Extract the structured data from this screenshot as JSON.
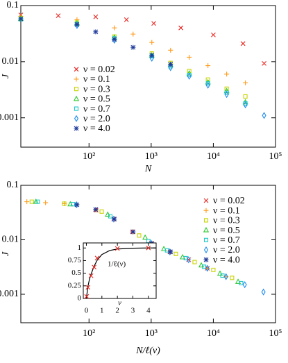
{
  "chart_data": [
    {
      "type": "scatter",
      "xlabel": "N",
      "ylabel": "J",
      "xscale": "log",
      "yscale": "log",
      "xlim": [
        8,
        100000
      ],
      "ylim": [
        0.0003,
        0.1
      ],
      "xticks": [
        {
          "value": 100,
          "label": "10²"
        },
        {
          "value": 1000,
          "label": "10³"
        },
        {
          "value": 10000,
          "label": "10⁴"
        },
        {
          "value": 100000,
          "label": "10⁵"
        }
      ],
      "yticks": [
        0.001,
        0.01,
        0.1
      ],
      "legend": "lower left",
      "series": [
        {
          "name": "ν = 0.02",
          "color": "#e8231e",
          "marker": "cross",
          "x": [
            8,
            32,
            128,
            400,
            1100,
            3000,
            10000,
            30000,
            65536
          ],
          "values": [
            0.068,
            0.066,
            0.063,
            0.056,
            0.048,
            0.04,
            0.03,
            0.021,
            0.0093
          ]
        },
        {
          "name": "ν = 0.1",
          "color": "#ff9a1a",
          "marker": "plus",
          "x": [
            8,
            64,
            256,
            512,
            1024,
            2048,
            4096,
            8192,
            16384,
            32768
          ],
          "values": [
            0.064,
            0.056,
            0.04,
            0.031,
            0.022,
            0.016,
            0.012,
            0.0085,
            0.006,
            0.0042
          ]
        },
        {
          "name": "ν = 0.3",
          "color": "#c8d400",
          "marker": "square",
          "x": [
            8,
            64,
            256,
            1024,
            2048,
            4096,
            8192,
            16384,
            32768
          ],
          "values": [
            0.06,
            0.05,
            0.028,
            0.014,
            0.0095,
            0.0068,
            0.0048,
            0.0033,
            0.0024
          ]
        },
        {
          "name": "ν = 0.5",
          "color": "#2ec82e",
          "marker": "triangle",
          "x": [
            8,
            64,
            256,
            1024,
            2048,
            4096,
            8192,
            16384,
            32768
          ],
          "values": [
            0.058,
            0.048,
            0.027,
            0.013,
            0.0088,
            0.0062,
            0.0043,
            0.003,
            0.0019
          ]
        },
        {
          "name": "ν = 0.7",
          "color": "#1ec8c8",
          "marker": "square",
          "x": [
            8,
            64,
            256,
            1024,
            2048,
            4096,
            8192,
            16384,
            32768
          ],
          "values": [
            0.057,
            0.047,
            0.026,
            0.0125,
            0.0083,
            0.0058,
            0.0041,
            0.0028,
            0.0018
          ]
        },
        {
          "name": "ν = 2.0",
          "color": "#1e8cf0",
          "marker": "diamond",
          "x": [
            64,
            256,
            1024,
            2048,
            4096,
            8192,
            16384,
            32768,
            65536
          ],
          "values": [
            0.044,
            0.024,
            0.0115,
            0.0078,
            0.0055,
            0.0038,
            0.0026,
            0.0017,
            0.0011
          ]
        },
        {
          "name": "ν = 4.0",
          "color": "#1f3a9a",
          "marker": "star",
          "x": [
            8,
            64,
            128,
            256,
            512,
            1024,
            2048
          ],
          "values": [
            0.058,
            0.046,
            0.034,
            0.025,
            0.018,
            0.013,
            0.009
          ]
        }
      ]
    },
    {
      "type": "scatter",
      "xlabel": "N/ℓ(ν)",
      "ylabel": "J",
      "xscale": "log",
      "yscale": "log",
      "xlim": [
        8,
        100000
      ],
      "ylim": [
        0.0003,
        0.1
      ],
      "xticks": [
        {
          "value": 100,
          "label": "10²"
        },
        {
          "value": 1000,
          "label": "10³"
        },
        {
          "value": 10000,
          "label": "10⁴"
        },
        {
          "value": 100000,
          "label": "10⁵"
        }
      ],
      "yticks": [
        0.001,
        0.01,
        0.1
      ],
      "legend": "upper right",
      "series": [
        {
          "name": "ν = 0.02",
          "color": "#e8231e",
          "marker": "cross",
          "x": [
            130,
            250,
            500,
            1000,
            2000,
            4000,
            8000
          ],
          "values": [
            0.035,
            0.024,
            0.014,
            0.0086,
            0.006,
            0.0043,
            0.003
          ]
        },
        {
          "name": "ν = 0.1",
          "color": "#ff9a1a",
          "marker": "plus",
          "x": [
            10,
            20,
            40,
            130,
            500,
            2000,
            8000,
            16000
          ],
          "values": [
            0.05,
            0.048,
            0.046,
            0.035,
            0.014,
            0.006,
            0.003,
            0.0021
          ]
        },
        {
          "name": "ν = 0.3",
          "color": "#c8d400",
          "marker": "square",
          "x": [
            12,
            40,
            160,
            640,
            2500,
            5000,
            10000,
            20000
          ],
          "values": [
            0.05,
            0.046,
            0.033,
            0.012,
            0.0055,
            0.0039,
            0.0028,
            0.002
          ]
        },
        {
          "name": "ν = 0.5",
          "color": "#2ec82e",
          "marker": "triangle",
          "x": [
            14,
            50,
            200,
            800,
            1600,
            3200,
            6400,
            12800,
            25000
          ],
          "values": [
            0.05,
            0.045,
            0.029,
            0.011,
            0.0068,
            0.0048,
            0.0034,
            0.0024,
            0.0017
          ]
        },
        {
          "name": "ν = 0.7",
          "color": "#1ec8c8",
          "marker": "square",
          "x": [
            15,
            55,
            220,
            900,
            1800,
            3600,
            7100,
            14000,
            28000
          ],
          "values": [
            0.05,
            0.045,
            0.027,
            0.0095,
            0.0064,
            0.0046,
            0.0032,
            0.0022,
            0.0016
          ]
        },
        {
          "name": "ν = 2.0",
          "color": "#1e8cf0",
          "marker": "diamond",
          "x": [
            63,
            250,
            1000,
            2000,
            4000,
            8000,
            16000,
            32000,
            64000
          ],
          "values": [
            0.044,
            0.024,
            0.0086,
            0.006,
            0.0043,
            0.003,
            0.0021,
            0.0015,
            0.0011
          ]
        },
        {
          "name": "ν = 4.0",
          "color": "#1f3a9a",
          "marker": "star",
          "x": [
            64,
            128,
            256,
            512,
            1024,
            2048
          ],
          "values": [
            0.044,
            0.036,
            0.024,
            0.014,
            0.0085,
            0.006
          ]
        }
      ]
    },
    {
      "type": "scatter",
      "xlabel": "ν",
      "annotation": "1/ℓ(ν)",
      "xlim": [
        -0.2,
        4.5
      ],
      "ylim": [
        0,
        1.1
      ],
      "xticks": [
        0,
        1,
        2,
        3,
        4
      ],
      "yticks": [
        0,
        0.25,
        0.5,
        0.75,
        1
      ],
      "series": [
        {
          "color": "#000000",
          "mode": "line",
          "x": [
            0,
            0.1,
            0.2,
            0.3,
            0.5,
            0.7,
            1,
            1.5,
            2,
            3,
            4,
            4.5
          ],
          "values": [
            0,
            0.24,
            0.38,
            0.48,
            0.64,
            0.76,
            0.87,
            0.95,
            0.98,
            0.995,
            1,
            1
          ]
        },
        {
          "color": "#e8231e",
          "marker": "cross",
          "x": [
            0.02,
            0.1,
            0.3,
            0.5,
            0.7,
            2,
            4
          ],
          "values": [
            0.04,
            0.22,
            0.45,
            0.62,
            0.8,
            0.99,
            1
          ]
        }
      ]
    }
  ]
}
